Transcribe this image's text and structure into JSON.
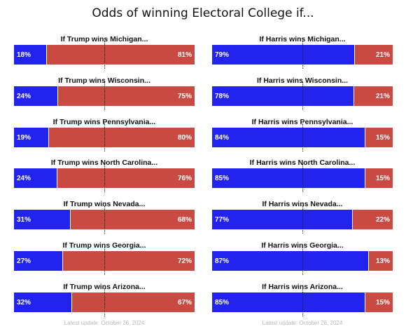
{
  "title": "Odds of winning Electoral College if...",
  "footnote": "Latest update: October 26, 2024",
  "colors": {
    "harris": "#2323f0",
    "trump": "#c94a43"
  },
  "chart_data": [
    {
      "type": "bar",
      "orientation": "horizontal-stacked",
      "candidate": "Trump",
      "categories": [
        "If Trump wins Michigan...",
        "If Trump wins Wisconsin...",
        "If Trump wins Pennsylvania...",
        "If Trump wins North Carolina...",
        "If Trump wins Nevada...",
        "If Trump wins Georgia...",
        "If Trump wins Arizona..."
      ],
      "series": [
        {
          "name": "Harris",
          "values": [
            18,
            24,
            19,
            24,
            31,
            27,
            32
          ],
          "labels": [
            "18%",
            "24%",
            "19%",
            "24%",
            "31%",
            "27%",
            "32%"
          ]
        },
        {
          "name": "Trump",
          "values": [
            81,
            75,
            80,
            76,
            68,
            72,
            67
          ],
          "labels": [
            "81%",
            "75%",
            "80%",
            "76%",
            "68%",
            "72%",
            "67%"
          ]
        }
      ],
      "reference_line": 50
    },
    {
      "type": "bar",
      "orientation": "horizontal-stacked",
      "candidate": "Harris",
      "categories": [
        "If Harris wins Michigan...",
        "If Harris wins Wisconsin...",
        "If Harris wins Pennsylvania...",
        "If Harris wins North Carolina...",
        "If Harris wins Nevada...",
        "If Harris wins Georgia...",
        "If Harris wins Arizona..."
      ],
      "series": [
        {
          "name": "Harris",
          "values": [
            79,
            78,
            84,
            85,
            77,
            87,
            85
          ],
          "labels": [
            "79%",
            "78%",
            "84%",
            "85%",
            "77%",
            "87%",
            "85%"
          ]
        },
        {
          "name": "Trump",
          "values": [
            21,
            21,
            15,
            15,
            22,
            13,
            15
          ],
          "labels": [
            "21%",
            "21%",
            "15%",
            "15%",
            "22%",
            "13%",
            "15%"
          ]
        }
      ],
      "reference_line": 50
    }
  ]
}
